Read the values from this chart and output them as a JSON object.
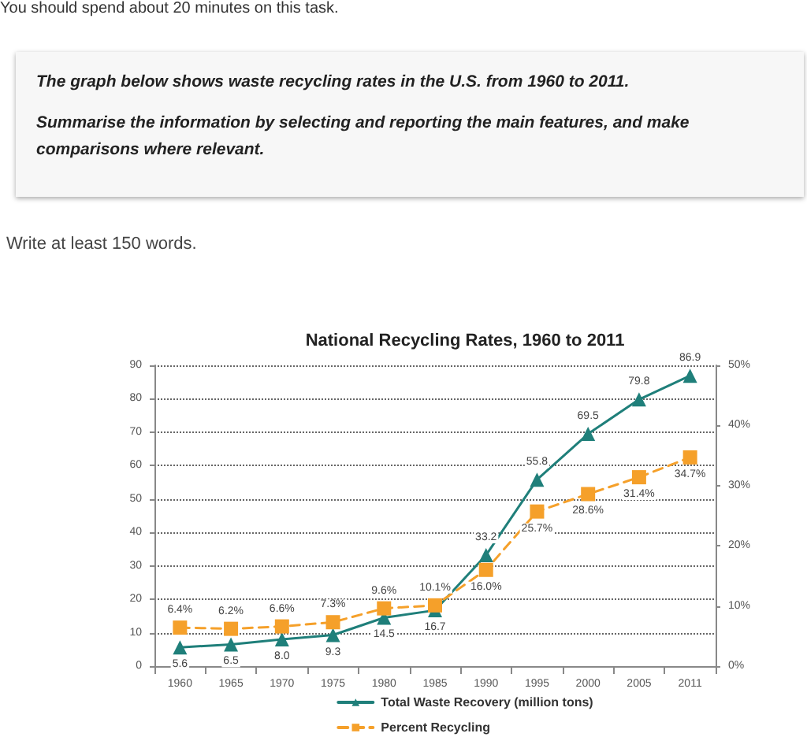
{
  "chart_data": {
    "type": "line",
    "title": "National Recycling Rates, 1960 to 2011",
    "annotations": [
      "You should spend about 20 minutes on this task.",
      "The graph below shows waste recycling rates in the U.S. from 1960 to 2011.",
      "Summarise the information by selecting and reporting the main features, and make comparisons where relevant.",
      "Write at least 150 words."
    ],
    "categories": [
      "1960",
      "1965",
      "1970",
      "1975",
      "1980",
      "1985",
      "1990",
      "1995",
      "2000",
      "2005",
      "2011"
    ],
    "series": [
      {
        "name": "Total Waste Recovery (million tons)",
        "color": "#1f7f7a",
        "marker": "triangle",
        "line_style": "solid",
        "values": [
          5.6,
          6.5,
          8.0,
          9.3,
          14.5,
          16.7,
          33.2,
          55.8,
          69.5,
          79.8,
          86.9
        ],
        "value_labels": [
          "5.6",
          "6.5",
          "8.0",
          "9.3",
          "14.5",
          "16.7",
          "33.2",
          "55.8",
          "69.5",
          "79.8",
          "86.9"
        ]
      },
      {
        "name": "Percent Recycling",
        "color": "#f5a02a",
        "marker": "square",
        "line_style": "dashed",
        "axis": "y2",
        "values": [
          6.4,
          6.2,
          6.6,
          7.3,
          9.6,
          10.1,
          16.0,
          25.7,
          28.6,
          31.4,
          34.7
        ],
        "value_labels": [
          "6.4%",
          "6.2%",
          "6.6%",
          "7.3%",
          "9.6%",
          "10.1%",
          "16.0%",
          "25.7%",
          "28.6%",
          "31.4%",
          "34.7%"
        ]
      }
    ],
    "ylim": [
      0,
      90
    ],
    "yticks": [
      0,
      10,
      20,
      30,
      40,
      50,
      60,
      70,
      80,
      90
    ],
    "y2lim": [
      0,
      50
    ],
    "y2ticks": [
      {
        "value": 0,
        "label": "0%"
      },
      {
        "value": 10,
        "label": "10%"
      },
      {
        "value": 20,
        "label": "20%"
      },
      {
        "value": 30,
        "label": "30%"
      },
      {
        "value": 40,
        "label": "40%"
      },
      {
        "value": 50,
        "label": "50%"
      }
    ],
    "grid": "y",
    "legend": "bottom"
  }
}
